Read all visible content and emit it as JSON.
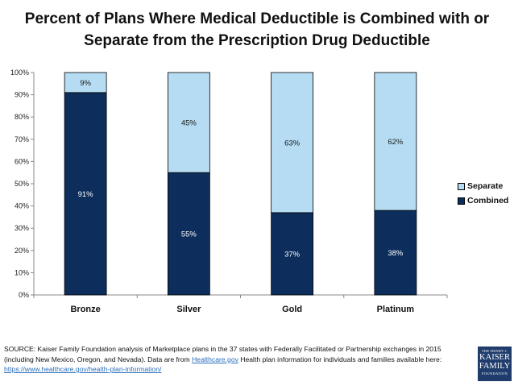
{
  "chart_data": {
    "type": "bar",
    "stacked": true,
    "title": "Percent of Plans Where Medical Deductible is Combined with or Separate from the Prescription Drug Deductible",
    "title_lines": [
      "Percent of Plans Where Medical Deductible is Combined with or",
      "Separate from the Prescription Drug Deductible"
    ],
    "categories": [
      "Bronze",
      "Silver",
      "Gold",
      "Platinum"
    ],
    "series": [
      {
        "name": "Combined",
        "values": [
          91,
          55,
          37,
          38
        ],
        "labels": [
          "91%",
          "55%",
          "37%",
          "38%"
        ],
        "color": "#0d2e5c",
        "label_color": "#ffffff"
      },
      {
        "name": "Separate",
        "values": [
          9,
          45,
          63,
          62
        ],
        "labels": [
          "9%",
          "45%",
          "63%",
          "62%"
        ],
        "color": "#b5dcf2",
        "label_color": "#1a1a1a"
      }
    ],
    "xlabel": "",
    "ylabel": "",
    "ylim": [
      0,
      100
    ],
    "yticks": [
      0,
      10,
      20,
      30,
      40,
      50,
      60,
      70,
      80,
      90,
      100
    ],
    "ytick_labels": [
      "0%",
      "10%",
      "20%",
      "30%",
      "40%",
      "50%",
      "60%",
      "70%",
      "80%",
      "90%",
      "100%"
    ],
    "grid": false,
    "legend": {
      "position": "right",
      "entries": [
        "Separate",
        "Combined"
      ]
    }
  },
  "footer": {
    "source_line1": "SOURCE: Kaiser Family Foundation analysis of Marketplace plans in the 37 states with Federally Facilitated or Partnership exchanges in 2015",
    "source_line2_pre": "(including New Mexico, Oregon, and Nevada). Data are from ",
    "source_link1": "Healthcare.gov",
    "source_line2_post": " Health plan information for individuals and families available here:",
    "source_link2": "https://www.healthcare.gov/health-plan-information/"
  },
  "logo": {
    "line1": "THE HENRY J.",
    "line2": "KAISER",
    "line3": "FAMILY",
    "line4": "FOUNDATION"
  }
}
